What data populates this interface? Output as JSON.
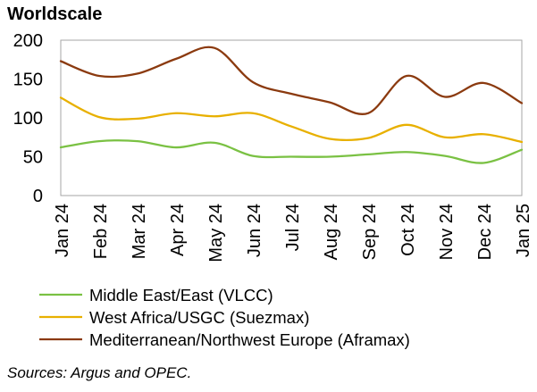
{
  "chart_data": {
    "type": "line",
    "ylabel": "Worldscale",
    "xlabel": "",
    "categories": [
      "Jan 24",
      "Feb 24",
      "Mar 24",
      "Apr 24",
      "May 24",
      "Jun 24",
      "Jul 24",
      "Aug 24",
      "Sep 24",
      "Oct 24",
      "Nov 24",
      "Dec 24",
      "Jan 25"
    ],
    "ylim": [
      0,
      200
    ],
    "yticks": [
      0,
      50,
      100,
      150,
      200
    ],
    "grid": false,
    "legend_position": "bottom",
    "series": [
      {
        "name": "Middle East/East (VLCC)",
        "color": "#7ac143",
        "values": [
          62,
          70,
          70,
          62,
          68,
          51,
          50,
          50,
          53,
          56,
          51,
          42,
          59
        ]
      },
      {
        "name": "West Africa/USGC (Suezmax)",
        "color": "#e8b000",
        "values": [
          126,
          101,
          99,
          106,
          102,
          106,
          89,
          73,
          74,
          91,
          75,
          79,
          69
        ]
      },
      {
        "name": "Mediterranean/Northwest Europe (Aframax)",
        "color": "#8b3a0f",
        "values": [
          173,
          154,
          157,
          176,
          190,
          146,
          131,
          120,
          106,
          154,
          127,
          145,
          119
        ]
      }
    ],
    "source": "Sources: Argus and OPEC."
  }
}
